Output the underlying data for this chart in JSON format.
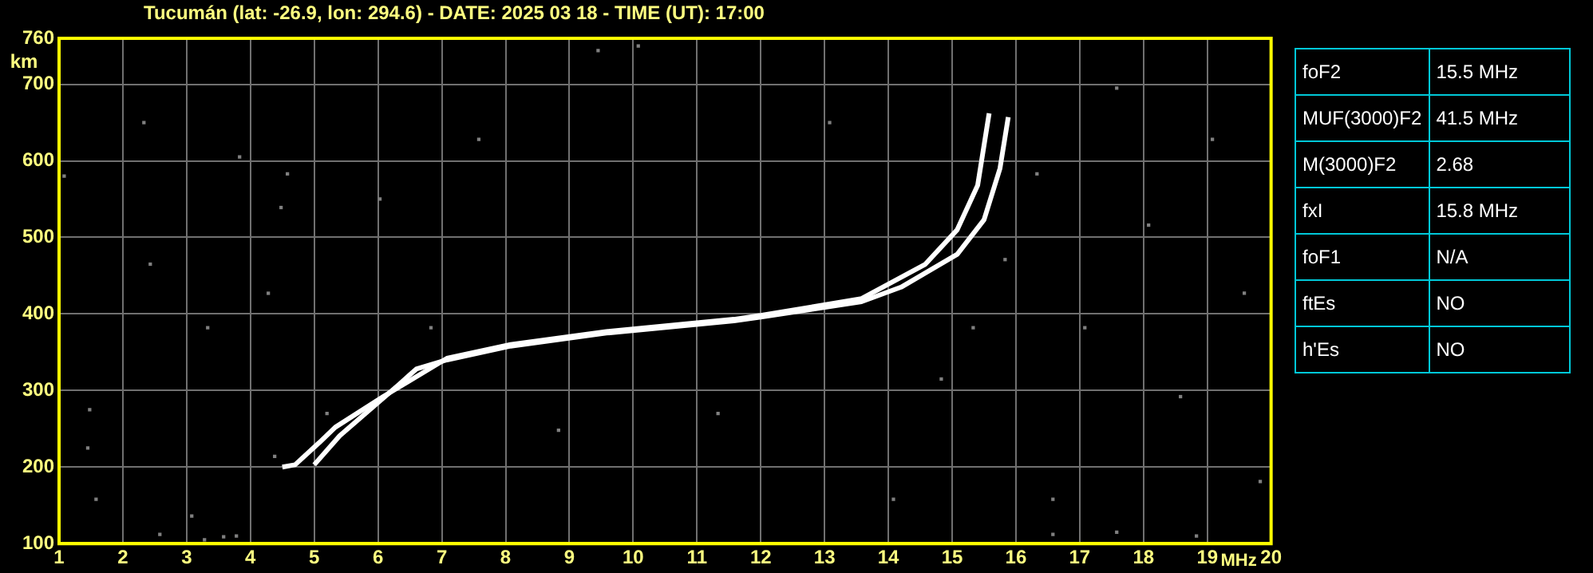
{
  "chart_data": [
    {
      "type": "line",
      "title": "Tucumán (lat: -26.9, lon: 294.6) - DATE: 2025 03 18 - TIME (UT): 17:00",
      "xlabel": "MHz",
      "ylabel": "km",
      "xlim": [
        1,
        20
      ],
      "ylim": [
        100,
        760
      ],
      "xticks": [
        1,
        2,
        3,
        4,
        5,
        6,
        7,
        8,
        9,
        10,
        11,
        12,
        13,
        14,
        15,
        16,
        17,
        18,
        19,
        20
      ],
      "yticks": [
        100,
        200,
        300,
        400,
        500,
        600,
        700,
        760
      ],
      "grid": true,
      "legend": false,
      "marker": "none",
      "line_style": "solid",
      "series": [
        {
          "color": "#ffffff",
          "x": [
            4.5,
            4.7,
            5.08,
            5.33,
            6.08,
            7.08,
            8.08,
            9.58,
            11.58,
            12.0,
            13.58,
            14.58,
            15.08,
            15.4,
            15.58
          ],
          "values": [
            200,
            203,
            232,
            252,
            292,
            342,
            360,
            377,
            393,
            398,
            420,
            465,
            510,
            568,
            662
          ]
        },
        {
          "color": "#ffffff",
          "x": [
            5.0,
            5.4,
            6.33,
            6.6,
            7.08,
            8.08,
            9.58,
            11.58,
            12.0,
            13.58,
            14.2,
            15.08,
            15.5,
            15.75,
            15.88
          ],
          "values": [
            203,
            241,
            308,
            328,
            340,
            358,
            375,
            391,
            396,
            416,
            435,
            478,
            523,
            590,
            657
          ]
        },
        {
          "type": "scatter",
          "marker": "square",
          "color": "#808080",
          "x": [
            1.08,
            2.43,
            1.58,
            1.48,
            3.08,
            3.78,
            3.83,
            4.48,
            4.38,
            4.58,
            4.28,
            5.2,
            7.58,
            6.03,
            10.08,
            9.45,
            14.83,
            15.33,
            16.33,
            16.58,
            17.08,
            17.58,
            18.08,
            18.58,
            19.08,
            19.58,
            19.83,
            16.58,
            17.58,
            18.83,
            2.58,
            3.28,
            3.58,
            1.45,
            2.33,
            3.33,
            13.08,
            14.08,
            15.83,
            11.33,
            8.83,
            6.83
          ],
          "values": [
            580,
            465,
            158,
            275,
            136,
            110,
            605,
            539,
            214,
            583,
            427,
            270,
            628,
            550,
            750,
            744,
            315,
            382,
            583,
            158,
            382,
            695,
            516,
            292,
            628,
            427,
            181,
            112,
            115,
            110,
            112,
            105,
            109,
            225,
            650,
            382,
            650,
            158,
            471,
            270,
            248,
            382
          ]
        }
      ]
    },
    {
      "type": "other",
      "annotations": [
        "foF2",
        "15.5 MHz",
        "MUF(3000)F2",
        "41.5 MHz",
        "M(3000)F2",
        "2.68",
        "fxI",
        "15.8 MHz",
        "foF1",
        "N/A",
        "ftEs",
        "NO",
        "h'Es",
        "NO"
      ]
    }
  ]
}
